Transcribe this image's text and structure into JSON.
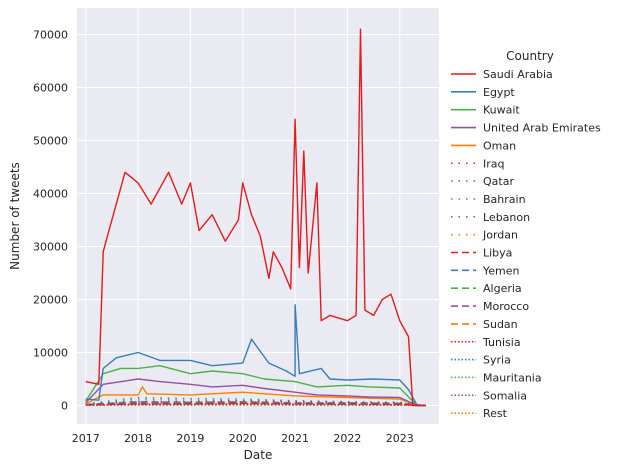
{
  "chart_data": {
    "type": "line",
    "title": "",
    "xlabel": "Date",
    "ylabel": "Number of tweets",
    "x_ticks": [
      "2017",
      "2018",
      "2019",
      "2020",
      "2021",
      "2022",
      "2023"
    ],
    "y_ticks": [
      0,
      10000,
      20000,
      30000,
      40000,
      50000,
      60000,
      70000
    ],
    "y_tick_labels": [
      "0",
      "10000",
      "20000",
      "30000",
      "40000",
      "50000",
      "60000",
      "70000"
    ],
    "xlim": [
      "2016-11",
      "2023-10"
    ],
    "ylim": [
      -3500,
      75000
    ],
    "grid": true,
    "legend": {
      "title": "Country",
      "placement": "outside-right"
    },
    "series": [
      {
        "name": "Saudi Arabia",
        "color": "#e41a1c",
        "dash": "solid",
        "points": [
          [
            "2017-01",
            4500
          ],
          [
            "2017-04",
            4000
          ],
          [
            "2017-05",
            29000
          ],
          [
            "2017-06",
            32000
          ],
          [
            "2017-08",
            38000
          ],
          [
            "2017-10",
            44000
          ],
          [
            "2018-01",
            42000
          ],
          [
            "2018-04",
            38000
          ],
          [
            "2018-08",
            44000
          ],
          [
            "2018-11",
            38000
          ],
          [
            "2019-01",
            42000
          ],
          [
            "2019-03",
            33000
          ],
          [
            "2019-06",
            36000
          ],
          [
            "2019-09",
            31000
          ],
          [
            "2019-12",
            35000
          ],
          [
            "2020-01",
            42000
          ],
          [
            "2020-03",
            36000
          ],
          [
            "2020-05",
            32000
          ],
          [
            "2020-07",
            24000
          ],
          [
            "2020-08",
            29000
          ],
          [
            "2020-10",
            26000
          ],
          [
            "2020-12",
            22000
          ],
          [
            "2021-01",
            54000
          ],
          [
            "2021-02",
            26000
          ],
          [
            "2021-03",
            48000
          ],
          [
            "2021-04",
            25000
          ],
          [
            "2021-06",
            42000
          ],
          [
            "2021-07",
            16000
          ],
          [
            "2021-09",
            17000
          ],
          [
            "2022-01",
            16000
          ],
          [
            "2022-03",
            17000
          ],
          [
            "2022-04",
            71000
          ],
          [
            "2022-05",
            18000
          ],
          [
            "2022-07",
            17000
          ],
          [
            "2022-09",
            20000
          ],
          [
            "2022-11",
            21000
          ],
          [
            "2023-01",
            16000
          ],
          [
            "2023-03",
            13000
          ],
          [
            "2023-04",
            0
          ],
          [
            "2023-07",
            0
          ]
        ]
      },
      {
        "name": "Egypt",
        "color": "#377eb8",
        "dash": "solid",
        "points": [
          [
            "2017-01",
            1200
          ],
          [
            "2017-04",
            1000
          ],
          [
            "2017-05",
            7000
          ],
          [
            "2017-08",
            9000
          ],
          [
            "2018-01",
            10000
          ],
          [
            "2018-06",
            8500
          ],
          [
            "2019-01",
            8500
          ],
          [
            "2019-06",
            7500
          ],
          [
            "2020-01",
            8000
          ],
          [
            "2020-03",
            12500
          ],
          [
            "2020-07",
            8000
          ],
          [
            "2020-11",
            6500
          ],
          [
            "2021-01",
            5500
          ],
          [
            "2021-01",
            19000
          ],
          [
            "2021-02",
            6000
          ],
          [
            "2021-07",
            7000
          ],
          [
            "2021-09",
            5000
          ],
          [
            "2022-01",
            4800
          ],
          [
            "2022-07",
            5000
          ],
          [
            "2023-01",
            4800
          ],
          [
            "2023-03",
            3000
          ],
          [
            "2023-05",
            0
          ],
          [
            "2023-07",
            0
          ]
        ]
      },
      {
        "name": "Kuwait",
        "color": "#4daf4a",
        "dash": "solid",
        "points": [
          [
            "2017-01",
            800
          ],
          [
            "2017-05",
            6000
          ],
          [
            "2017-09",
            7000
          ],
          [
            "2018-01",
            7000
          ],
          [
            "2018-06",
            7500
          ],
          [
            "2019-01",
            6000
          ],
          [
            "2019-06",
            6500
          ],
          [
            "2020-01",
            6000
          ],
          [
            "2020-06",
            5000
          ],
          [
            "2021-01",
            4500
          ],
          [
            "2021-06",
            3500
          ],
          [
            "2022-01",
            3800
          ],
          [
            "2022-06",
            3500
          ],
          [
            "2023-01",
            3300
          ],
          [
            "2023-05",
            0
          ],
          [
            "2023-07",
            0
          ]
        ]
      },
      {
        "name": "United Arab Emirates",
        "color": "#984ea3",
        "dash": "solid",
        "points": [
          [
            "2017-01",
            500
          ],
          [
            "2017-05",
            4000
          ],
          [
            "2018-01",
            5000
          ],
          [
            "2018-06",
            4500
          ],
          [
            "2019-01",
            4000
          ],
          [
            "2019-06",
            3500
          ],
          [
            "2020-01",
            3800
          ],
          [
            "2020-06",
            3200
          ],
          [
            "2021-01",
            2500
          ],
          [
            "2021-06",
            2000
          ],
          [
            "2022-01",
            1800
          ],
          [
            "2022-06",
            1600
          ],
          [
            "2023-01",
            1500
          ],
          [
            "2023-05",
            0
          ],
          [
            "2023-07",
            0
          ]
        ]
      },
      {
        "name": "Oman",
        "color": "#ff7f00",
        "dash": "solid",
        "points": [
          [
            "2017-01",
            300
          ],
          [
            "2017-05",
            2000
          ],
          [
            "2018-01",
            2000
          ],
          [
            "2018-02",
            3500
          ],
          [
            "2018-03",
            2200
          ],
          [
            "2019-01",
            2000
          ],
          [
            "2020-01",
            2500
          ],
          [
            "2020-06",
            2200
          ],
          [
            "2021-01",
            1800
          ],
          [
            "2022-01",
            1500
          ],
          [
            "2023-01",
            1200
          ],
          [
            "2023-05",
            0
          ],
          [
            "2023-07",
            0
          ]
        ]
      },
      {
        "name": "Iraq",
        "color": "#e41a1c",
        "dash": "1.5,6",
        "points": [
          [
            "2017-01",
            300
          ],
          [
            "2018-01",
            800
          ],
          [
            "2019-01",
            700
          ],
          [
            "2020-01",
            900
          ],
          [
            "2021-01",
            700
          ],
          [
            "2022-01",
            600
          ],
          [
            "2023-01",
            500
          ],
          [
            "2023-07",
            0
          ]
        ]
      },
      {
        "name": "Qatar",
        "color": "#377eb8",
        "dash": "1.5,6",
        "points": [
          [
            "2017-01",
            300
          ],
          [
            "2018-01",
            1500
          ],
          [
            "2019-01",
            1300
          ],
          [
            "2020-01",
            1200
          ],
          [
            "2021-01",
            900
          ],
          [
            "2022-01",
            700
          ],
          [
            "2023-01",
            600
          ],
          [
            "2023-07",
            0
          ]
        ]
      },
      {
        "name": "Bahrain",
        "color": "#4daf4a",
        "dash": "1.5,6",
        "points": [
          [
            "2017-01",
            200
          ],
          [
            "2018-01",
            1200
          ],
          [
            "2019-01",
            1000
          ],
          [
            "2020-01",
            900
          ],
          [
            "2021-01",
            700
          ],
          [
            "2022-01",
            600
          ],
          [
            "2023-01",
            500
          ],
          [
            "2023-07",
            0
          ]
        ]
      },
      {
        "name": "Lebanon",
        "color": "#984ea3",
        "dash": "1.5,6",
        "points": [
          [
            "2017-01",
            100
          ],
          [
            "2018-01",
            400
          ],
          [
            "2019-01",
            400
          ],
          [
            "2020-01",
            500
          ],
          [
            "2021-01",
            400
          ],
          [
            "2022-01",
            300
          ],
          [
            "2023-01",
            300
          ],
          [
            "2023-07",
            0
          ]
        ]
      },
      {
        "name": "Jordan",
        "color": "#ff7f00",
        "dash": "1.5,6",
        "points": [
          [
            "2017-01",
            200
          ],
          [
            "2018-01",
            600
          ],
          [
            "2019-01",
            500
          ],
          [
            "2020-01",
            600
          ],
          [
            "2021-01",
            500
          ],
          [
            "2022-01",
            400
          ],
          [
            "2023-01",
            300
          ],
          [
            "2023-07",
            0
          ]
        ]
      },
      {
        "name": "Libya",
        "color": "#e41a1c",
        "dash": "7,4",
        "points": [
          [
            "2017-01",
            100
          ],
          [
            "2018-01",
            300
          ],
          [
            "2019-01",
            300
          ],
          [
            "2020-01",
            400
          ],
          [
            "2021-01",
            300
          ],
          [
            "2022-01",
            300
          ],
          [
            "2023-01",
            200
          ],
          [
            "2023-07",
            0
          ]
        ]
      },
      {
        "name": "Yemen",
        "color": "#377eb8",
        "dash": "7,4",
        "points": [
          [
            "2017-01",
            200
          ],
          [
            "2018-01",
            700
          ],
          [
            "2019-01",
            600
          ],
          [
            "2020-01",
            700
          ],
          [
            "2021-01",
            500
          ],
          [
            "2022-01",
            500
          ],
          [
            "2023-01",
            400
          ],
          [
            "2023-07",
            0
          ]
        ]
      },
      {
        "name": "Algeria",
        "color": "#4daf4a",
        "dash": "7,4",
        "points": [
          [
            "2017-01",
            100
          ],
          [
            "2018-01",
            300
          ],
          [
            "2019-01",
            300
          ],
          [
            "2020-01",
            400
          ],
          [
            "2021-01",
            300
          ],
          [
            "2022-01",
            200
          ],
          [
            "2023-01",
            200
          ],
          [
            "2023-07",
            0
          ]
        ]
      },
      {
        "name": "Morocco",
        "color": "#984ea3",
        "dash": "7,4",
        "points": [
          [
            "2017-01",
            100
          ],
          [
            "2018-01",
            500
          ],
          [
            "2019-01",
            400
          ],
          [
            "2020-01",
            500
          ],
          [
            "2021-01",
            400
          ],
          [
            "2022-01",
            300
          ],
          [
            "2023-01",
            300
          ],
          [
            "2023-07",
            0
          ]
        ]
      },
      {
        "name": "Sudan",
        "color": "#ff7f00",
        "dash": "7,4",
        "points": [
          [
            "2017-01",
            100
          ],
          [
            "2018-01",
            400
          ],
          [
            "2019-01",
            500
          ],
          [
            "2020-01",
            400
          ],
          [
            "2021-01",
            300
          ],
          [
            "2022-01",
            300
          ],
          [
            "2023-01",
            200
          ],
          [
            "2023-07",
            0
          ]
        ]
      },
      {
        "name": "Tunisia",
        "color": "#e41a1c",
        "dash": "1.5,2",
        "points": [
          [
            "2017-01",
            50
          ],
          [
            "2018-01",
            200
          ],
          [
            "2019-01",
            200
          ],
          [
            "2020-01",
            200
          ],
          [
            "2021-01",
            150
          ],
          [
            "2022-01",
            150
          ],
          [
            "2023-01",
            100
          ],
          [
            "2023-07",
            0
          ]
        ]
      },
      {
        "name": "Syria",
        "color": "#377eb8",
        "dash": "1.5,2",
        "points": [
          [
            "2017-01",
            50
          ],
          [
            "2018-01",
            200
          ],
          [
            "2019-01",
            200
          ],
          [
            "2020-01",
            300
          ],
          [
            "2021-01",
            200
          ],
          [
            "2022-01",
            150
          ],
          [
            "2023-01",
            100
          ],
          [
            "2023-07",
            0
          ]
        ]
      },
      {
        "name": "Mauritania",
        "color": "#4daf4a",
        "dash": "1.5,2",
        "points": [
          [
            "2017-01",
            20
          ],
          [
            "2018-01",
            100
          ],
          [
            "2019-01",
            100
          ],
          [
            "2020-01",
            100
          ],
          [
            "2021-01",
            80
          ],
          [
            "2022-01",
            80
          ],
          [
            "2023-01",
            50
          ],
          [
            "2023-07",
            0
          ]
        ]
      },
      {
        "name": "Somalia",
        "color": "#984ea3",
        "dash": "1.5,2",
        "points": [
          [
            "2017-01",
            20
          ],
          [
            "2018-01",
            80
          ],
          [
            "2019-01",
            80
          ],
          [
            "2020-01",
            100
          ],
          [
            "2021-01",
            80
          ],
          [
            "2022-01",
            60
          ],
          [
            "2023-01",
            50
          ],
          [
            "2023-07",
            0
          ]
        ]
      },
      {
        "name": "Rest",
        "color": "#ff7f00",
        "dash": "1.5,2",
        "points": [
          [
            "2017-01",
            100
          ],
          [
            "2018-01",
            300
          ],
          [
            "2019-01",
            300
          ],
          [
            "2020-01",
            400
          ],
          [
            "2021-01",
            300
          ],
          [
            "2022-01",
            200
          ],
          [
            "2023-01",
            200
          ],
          [
            "2023-07",
            0
          ]
        ]
      }
    ]
  }
}
